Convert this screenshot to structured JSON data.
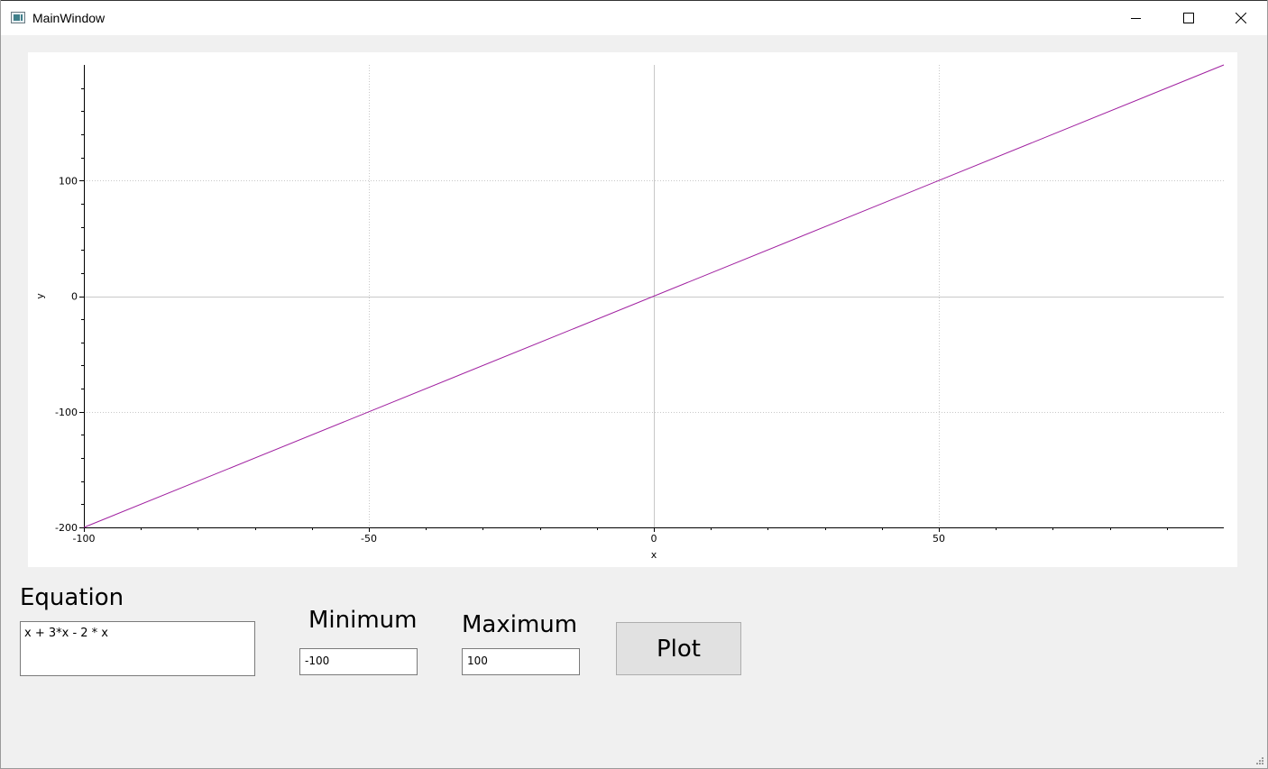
{
  "window": {
    "title": "MainWindow",
    "icon": "app-window-icon"
  },
  "colors": {
    "series": "#a020a0",
    "grid": "#c8c8c8",
    "zero_line": "#c8c8c8",
    "axis": "#000000"
  },
  "chart_data": {
    "type": "line",
    "title": "",
    "xlabel": "x",
    "ylabel": "y",
    "xlim": [
      -100,
      100
    ],
    "ylim": [
      -200,
      200
    ],
    "x_ticks": [
      -100,
      -50,
      0,
      50
    ],
    "y_ticks": [
      -200,
      -100,
      0,
      100
    ],
    "x_tick_labels": [
      "-100",
      "-50",
      "0",
      "50"
    ],
    "y_tick_labels": [
      "-200",
      "-100",
      "0",
      "100"
    ],
    "grid": true,
    "series": [
      {
        "x": [
          -100,
          100
        ],
        "y": [
          -200,
          200
        ],
        "color": "#a020a0"
      }
    ]
  },
  "form": {
    "equation_label": "Equation",
    "equation_value": "x + 3*x - 2 * x",
    "minimum_label": "Minimum",
    "minimum_value": "-100",
    "maximum_label": "Maximum",
    "maximum_value": "100",
    "plot_button": "Plot"
  }
}
